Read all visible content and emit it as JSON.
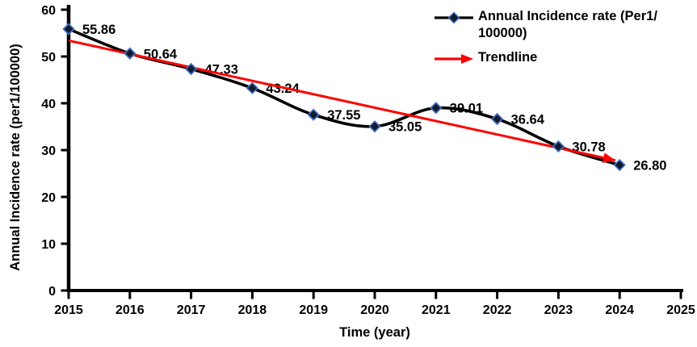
{
  "figure": {
    "background": "#ffffff",
    "text_color": "#000000"
  },
  "chart_data": {
    "type": "line",
    "title": "",
    "xlabel": "Time (year)",
    "ylabel": "Annual Incidence rate (per1/100000)",
    "x": [
      2015,
      2016,
      2017,
      2018,
      2019,
      2020,
      2021,
      2022,
      2023,
      2024
    ],
    "series": [
      {
        "name": "Annual Incidence rate (Per1/100000)",
        "values": [
          55.86,
          50.64,
          47.33,
          43.24,
          37.55,
          35.05,
          39.01,
          36.64,
          30.78,
          26.8
        ],
        "point_labels": [
          "55.86",
          "50.64",
          "47.33",
          "43.24",
          "37.55",
          "35.05",
          "39.01",
          "36.64",
          "30.78",
          "26.80"
        ],
        "line_color": "#000000",
        "line_style": "smooth",
        "marker": "diamond",
        "marker_fill": "#111a2e",
        "marker_stroke": "#4472c4"
      }
    ],
    "trendline": {
      "name": "Trendline",
      "color": "#fe0000",
      "style": "arrow-end",
      "start": {
        "x": 2015,
        "y": 53.4
      },
      "end": {
        "x": 2023.93,
        "y": 27.8
      }
    },
    "xlim": [
      2015,
      2025
    ],
    "ylim": [
      0,
      60
    ],
    "x_ticks": [
      "2015",
      "2016",
      "2017",
      "2018",
      "2019",
      "2020",
      "2021",
      "2022",
      "2023",
      "2024",
      "2025"
    ],
    "y_ticks": [
      "0",
      "10",
      "20",
      "30",
      "40",
      "50",
      "60"
    ],
    "grid": false,
    "legend": {
      "position": "top-right-inside",
      "entries": [
        {
          "label": "Annual Incidence rate (Per1/100000)",
          "label_lines": [
            "Annual Incidence rate (Per1/",
            "100000)"
          ],
          "symbol": "black-line-diamond-marker"
        },
        {
          "label": "Trendline",
          "label_lines": [
            "Trendline"
          ],
          "symbol": "red-arrow"
        }
      ]
    }
  }
}
